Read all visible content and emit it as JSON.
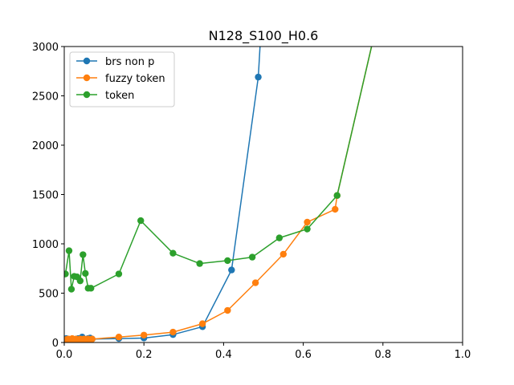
{
  "chart_data": {
    "type": "line",
    "title": "N128_S100_H0.6",
    "xlabel": "",
    "ylabel": "",
    "xlim": [
      0.0,
      1.0
    ],
    "ylim": [
      0,
      3000
    ],
    "xticks": [
      "0.0",
      "0.2",
      "0.4",
      "0.6",
      "0.8",
      "1.0"
    ],
    "yticks": [
      "0",
      "500",
      "1000",
      "1500",
      "2000",
      "2500",
      "3000"
    ],
    "grid": false,
    "legend_position": "top-left",
    "series": [
      {
        "name": "brs non p",
        "color": "#1f77b4",
        "points": [
          [
            0.005,
            40
          ],
          [
            0.01,
            35
          ],
          [
            0.015,
            30
          ],
          [
            0.02,
            35
          ],
          [
            0.025,
            30
          ],
          [
            0.03,
            35
          ],
          [
            0.035,
            40
          ],
          [
            0.04,
            30
          ],
          [
            0.045,
            55
          ],
          [
            0.05,
            35
          ],
          [
            0.055,
            30
          ],
          [
            0.06,
            40
          ],
          [
            0.065,
            45
          ],
          [
            0.07,
            35
          ],
          [
            0.137,
            40
          ],
          [
            0.2,
            45
          ],
          [
            0.273,
            80
          ],
          [
            0.347,
            160
          ],
          [
            0.42,
            735
          ],
          [
            0.487,
            2690
          ],
          [
            0.52,
            5000
          ]
        ]
      },
      {
        "name": "fuzzy token",
        "color": "#ff7f0e",
        "points": [
          [
            0.005,
            30
          ],
          [
            0.01,
            35
          ],
          [
            0.015,
            30
          ],
          [
            0.02,
            40
          ],
          [
            0.025,
            30
          ],
          [
            0.03,
            35
          ],
          [
            0.035,
            30
          ],
          [
            0.04,
            35
          ],
          [
            0.045,
            30
          ],
          [
            0.05,
            35
          ],
          [
            0.055,
            30
          ],
          [
            0.06,
            35
          ],
          [
            0.065,
            30
          ],
          [
            0.07,
            35
          ],
          [
            0.137,
            55
          ],
          [
            0.2,
            75
          ],
          [
            0.273,
            105
          ],
          [
            0.347,
            190
          ],
          [
            0.41,
            325
          ],
          [
            0.48,
            605
          ],
          [
            0.55,
            895
          ],
          [
            0.61,
            1220
          ],
          [
            0.68,
            1350
          ],
          [
            0.685,
            1490
          ],
          [
            0.8,
            3500
          ]
        ]
      },
      {
        "name": "token",
        "color": "#2ca02c",
        "points": [
          [
            0.003,
            695
          ],
          [
            0.012,
            930
          ],
          [
            0.018,
            540
          ],
          [
            0.025,
            670
          ],
          [
            0.032,
            665
          ],
          [
            0.04,
            625
          ],
          [
            0.047,
            890
          ],
          [
            0.053,
            700
          ],
          [
            0.06,
            550
          ],
          [
            0.067,
            550
          ],
          [
            0.137,
            695
          ],
          [
            0.192,
            1235
          ],
          [
            0.273,
            905
          ],
          [
            0.34,
            800
          ],
          [
            0.41,
            830
          ],
          [
            0.472,
            865
          ],
          [
            0.54,
            1060
          ],
          [
            0.61,
            1150
          ],
          [
            0.685,
            1490
          ],
          [
            0.8,
            3500
          ]
        ]
      }
    ]
  }
}
